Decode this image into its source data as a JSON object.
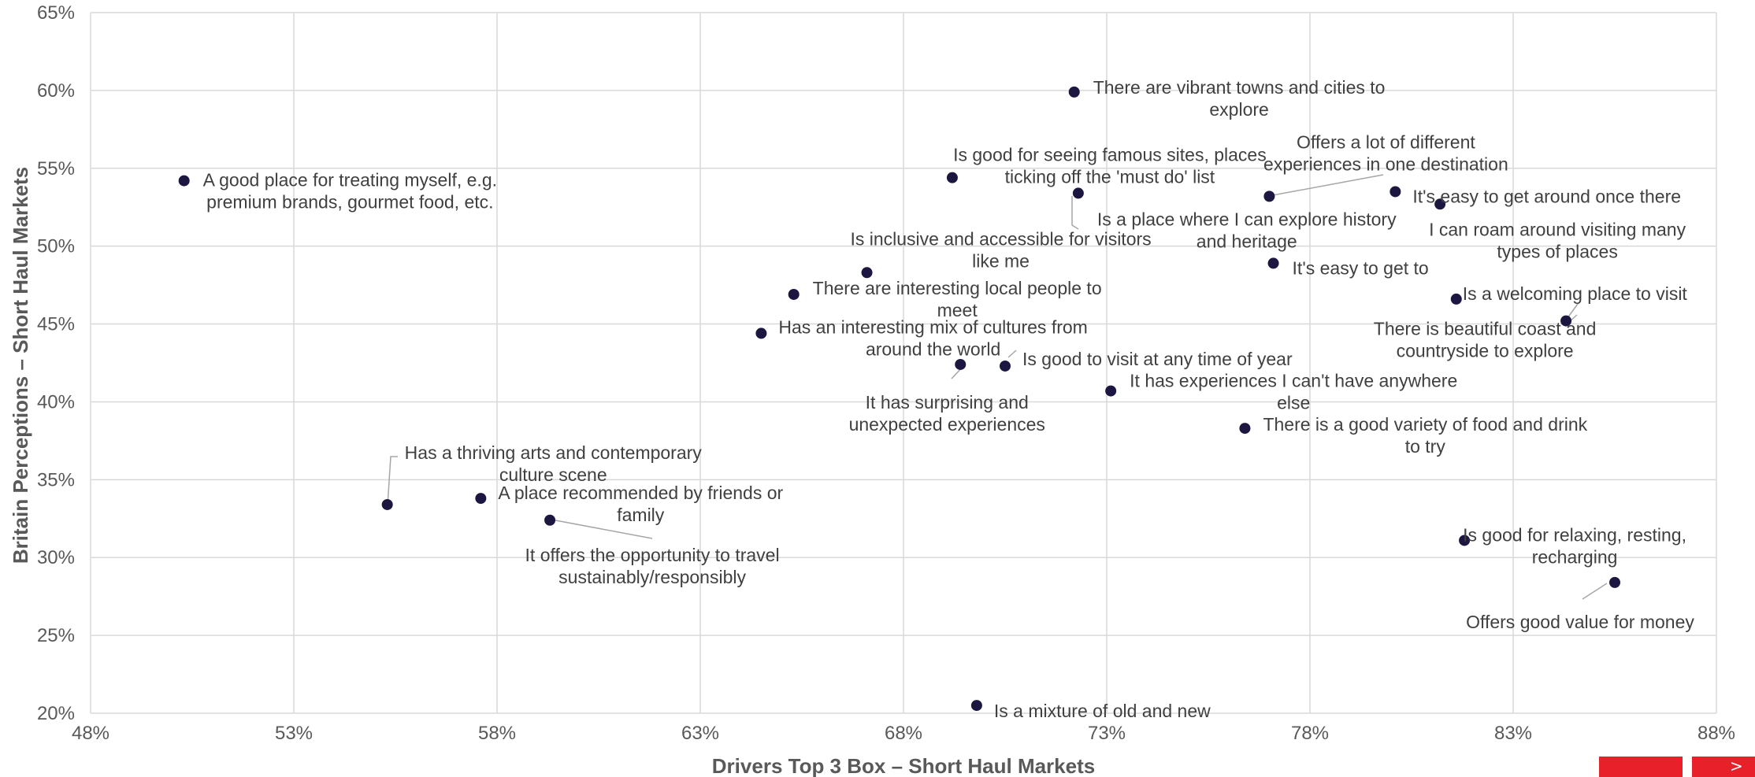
{
  "chart_data": {
    "type": "scatter",
    "xlabel": "Drivers Top 3 Box – Short Haul Markets",
    "ylabel": "Britain Perceptions – Short Haul Markets",
    "xlim": [
      48,
      88
    ],
    "ylim": [
      20,
      65
    ],
    "xticks": [
      48,
      53,
      58,
      63,
      68,
      73,
      78,
      83,
      88
    ],
    "yticks": [
      20,
      25,
      30,
      35,
      40,
      45,
      50,
      55,
      60,
      65
    ],
    "xtick_labels": [
      "48%",
      "53%",
      "58%",
      "63%",
      "68%",
      "73%",
      "78%",
      "83%",
      "88%"
    ],
    "ytick_labels": [
      "20%",
      "25%",
      "30%",
      "35%",
      "40%",
      "45%",
      "50%",
      "55%",
      "60%",
      "65%"
    ],
    "grid": true,
    "marker_color": "#1b1740",
    "points": [
      {
        "x": 50.3,
        "y": 54.2,
        "label": [
          "A good place for treating myself, e.g.",
          "premium brands, gourmet food, etc."
        ]
      },
      {
        "x": 72.2,
        "y": 59.9,
        "label": [
          "There are vibrant towns and cities to",
          "explore"
        ]
      },
      {
        "x": 69.2,
        "y": 54.4,
        "label": [
          "Is good for seeing famous sites, places",
          "ticking off the 'must do' list"
        ]
      },
      {
        "x": 72.3,
        "y": 53.4,
        "label": [
          "Is a place where I can explore history",
          "and heritage"
        ]
      },
      {
        "x": 77.0,
        "y": 53.2,
        "label": [
          "Offers a lot of different",
          "experiences in one destination"
        ]
      },
      {
        "x": 80.1,
        "y": 53.5,
        "label": [
          "It's easy to get around once there"
        ]
      },
      {
        "x": 81.2,
        "y": 52.7,
        "label": [
          "I can roam around visiting many",
          "types of places"
        ]
      },
      {
        "x": 67.1,
        "y": 48.3,
        "label": [
          "Is inclusive and accessible for visitors",
          "like me"
        ]
      },
      {
        "x": 77.1,
        "y": 48.9,
        "label": [
          "It's easy to get to"
        ]
      },
      {
        "x": 65.3,
        "y": 46.9,
        "label": [
          "There are interesting local people to",
          "meet"
        ]
      },
      {
        "x": 81.6,
        "y": 46.6,
        "label": [
          "Is a welcoming place to visit"
        ]
      },
      {
        "x": 84.3,
        "y": 45.2,
        "label": [
          "There is beautiful coast and",
          "countryside to explore"
        ]
      },
      {
        "x": 64.5,
        "y": 44.4,
        "label": [
          "Has an interesting mix of cultures from",
          "around the world"
        ]
      },
      {
        "x": 69.4,
        "y": 42.4,
        "label": [
          "It has surprising and",
          "unexpected experiences"
        ]
      },
      {
        "x": 70.5,
        "y": 42.3,
        "label": [
          "Is good to visit at any time of year"
        ]
      },
      {
        "x": 73.1,
        "y": 40.7,
        "label": [
          "It has experiences I can't have anywhere",
          "else"
        ]
      },
      {
        "x": 76.4,
        "y": 38.3,
        "label": [
          "There is a good variety of food and drink",
          "to try"
        ]
      },
      {
        "x": 55.3,
        "y": 33.4,
        "label": [
          "Has a thriving arts and contemporary",
          "culture scene"
        ]
      },
      {
        "x": 57.6,
        "y": 33.8,
        "label": [
          "A place recommended by friends or",
          "family"
        ]
      },
      {
        "x": 59.3,
        "y": 32.4,
        "label": [
          "It offers the opportunity to travel",
          "sustainably/responsibly"
        ]
      },
      {
        "x": 81.8,
        "y": 31.1,
        "label": [
          "Is good for relaxing, resting,",
          "recharging"
        ]
      },
      {
        "x": 85.5,
        "y": 28.4,
        "label": [
          "Offers good value for money"
        ]
      },
      {
        "x": 69.8,
        "y": 20.5,
        "label": [
          "Is a mixture of old and new"
        ]
      }
    ]
  },
  "brand": {
    "accent": "#e8202a",
    "arrow_glyph": ">"
  }
}
